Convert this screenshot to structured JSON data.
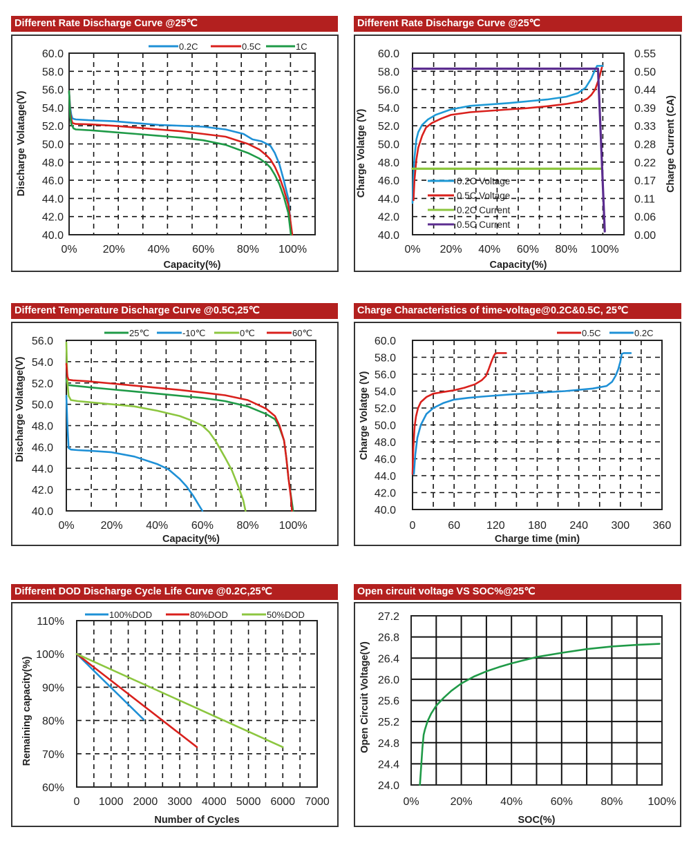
{
  "chart_data": [
    {
      "id": "rate-discharge",
      "type": "line",
      "title": "Different Rate Discharge Curve @25℃",
      "xlabel": "Capacity(%)",
      "ylabel": "Discharge Volatage(V)",
      "xlim": [
        0,
        110
      ],
      "ylim": [
        40,
        60
      ],
      "xticks": [
        0,
        20,
        40,
        60,
        80,
        100
      ],
      "xtick_labels": [
        "0%",
        "20%",
        "40%",
        "60%",
        "80%",
        "100%"
      ],
      "yticks": [
        40,
        42,
        44,
        46,
        48,
        50,
        52,
        54,
        56,
        58,
        60
      ],
      "ytick_labels": [
        "40.0",
        "42.0",
        "44.0",
        "46.0",
        "48.0",
        "50.0",
        "52.0",
        "54.0",
        "56.0",
        "58.0",
        "60.0"
      ],
      "grid": "dashed",
      "legend": "top-right",
      "series": [
        {
          "name": "0.2C",
          "color": "#1e90d6",
          "x": [
            0,
            0.5,
            1,
            1.5,
            3,
            10,
            20,
            30,
            40,
            50,
            60,
            70,
            78,
            82,
            86,
            90,
            92,
            94,
            96,
            98,
            99.5
          ],
          "y": [
            55.8,
            54,
            53.2,
            52.8,
            52.7,
            52.6,
            52.5,
            52.3,
            52.1,
            52.0,
            51.9,
            51.6,
            51.1,
            50.5,
            50.3,
            49.8,
            49.0,
            47.8,
            46.0,
            44.0,
            40.0
          ]
        },
        {
          "name": "0.5C",
          "color": "#d9201c",
          "x": [
            0,
            0.5,
            1,
            1.5,
            3,
            10,
            20,
            30,
            40,
            50,
            60,
            70,
            80,
            85,
            88,
            90,
            92,
            94,
            96,
            98,
            99.8
          ],
          "y": [
            55.8,
            53.5,
            52.7,
            52.3,
            52.2,
            52.15,
            52.0,
            51.8,
            51.6,
            51.4,
            51.1,
            50.8,
            50.0,
            49.4,
            48.8,
            48.3,
            47.5,
            46.4,
            45.0,
            43.3,
            40.0
          ]
        },
        {
          "name": "1C",
          "color": "#1f9a47",
          "x": [
            0,
            0.5,
            1,
            2,
            3,
            10,
            20,
            30,
            40,
            50,
            60,
            70,
            80,
            85,
            88,
            90,
            92,
            94,
            96,
            98,
            99.2
          ],
          "y": [
            55.8,
            53.0,
            52.2,
            51.7,
            51.6,
            51.5,
            51.3,
            51.1,
            50.9,
            50.7,
            50.4,
            49.9,
            49.0,
            48.4,
            47.9,
            47.4,
            46.6,
            45.6,
            44.2,
            42.4,
            40.0
          ]
        }
      ]
    },
    {
      "id": "rate-charge",
      "type": "line",
      "title": "Different Rate Discharge Curve @25℃",
      "xlabel": "Capacity(%)",
      "ylabel": "Charge Volatge (V)",
      "y2label": "Charge Current (CA)",
      "xlim": [
        0,
        110
      ],
      "ylim": [
        40,
        60
      ],
      "y2lim": [
        0,
        0.55
      ],
      "xticks": [
        0,
        20,
        40,
        60,
        80,
        100
      ],
      "xtick_labels": [
        "0%",
        "20%",
        "40%",
        "60%",
        "80%",
        "100%"
      ],
      "yticks": [
        40,
        42,
        44,
        46,
        48,
        50,
        52,
        54,
        56,
        58,
        60
      ],
      "ytick_labels": [
        "40.0",
        "42.0",
        "44.0",
        "46.0",
        "48.0",
        "50.0",
        "52.0",
        "54.0",
        "56.0",
        "58.0",
        "60.0"
      ],
      "y2tick_labels": [
        "0.00",
        "0.06",
        "0.11",
        "0.17",
        "0.22",
        "0.28",
        "0.33",
        "0.39",
        "0.44",
        "0.50",
        "0.55"
      ],
      "grid": "dashed",
      "legend": "bottom-left",
      "series": [
        {
          "name": "0.2C Voltage",
          "color": "#1e9ad6",
          "axis": "left",
          "x": [
            0,
            0.4,
            1,
            2,
            3,
            5,
            8,
            12,
            20,
            30,
            40,
            50,
            60,
            70,
            80,
            86,
            90,
            93,
            95,
            96,
            99
          ],
          "y": [
            43.5,
            46,
            48.5,
            50.5,
            51.3,
            52.1,
            52.7,
            53.2,
            53.8,
            54.2,
            54.35,
            54.5,
            54.7,
            54.9,
            55.2,
            55.6,
            56.2,
            57.2,
            58.2,
            58.6,
            58.6
          ]
        },
        {
          "name": "0.5C Voltage",
          "color": "#d9201c",
          "axis": "left",
          "x": [
            0.5,
            1,
            2,
            3,
            5,
            7,
            10,
            15,
            20,
            30,
            40,
            50,
            60,
            70,
            80,
            88,
            91,
            93,
            95,
            97,
            98.5
          ],
          "y": [
            43.8,
            46,
            48.3,
            49.6,
            50.9,
            51.8,
            52.3,
            52.8,
            53.2,
            53.5,
            53.65,
            53.8,
            53.95,
            54.15,
            54.4,
            54.7,
            55.0,
            55.4,
            56.0,
            57.2,
            58.4
          ]
        },
        {
          "name": "0.2C Current",
          "color": "#8cc63f",
          "axis": "right",
          "x": [
            0,
            98
          ],
          "y": [
            0.2,
            0.2
          ]
        },
        {
          "name": "0.5C Current",
          "color": "#5b2c8f",
          "axis": "right",
          "x": [
            0,
            96.5,
            100
          ],
          "y": [
            0.503,
            0.503,
            0.01
          ]
        }
      ]
    },
    {
      "id": "temperature-discharge",
      "type": "line",
      "title": "Different Temperature Discharge Curve @0.5C,25℃",
      "xlabel": "Capacity(%)",
      "ylabel": "Discharge Volatage(V)",
      "xlim": [
        0,
        110
      ],
      "ylim": [
        40,
        56
      ],
      "xticks": [
        0,
        20,
        40,
        60,
        80,
        100
      ],
      "xtick_labels": [
        "0%",
        "20%",
        "40%",
        "60%",
        "80%",
        "100%"
      ],
      "yticks": [
        40,
        42,
        44,
        46,
        48,
        50,
        52,
        54,
        56
      ],
      "ytick_labels": [
        "40.0",
        "42.0",
        "44.0",
        "46.0",
        "48.0",
        "50.0",
        "52.0",
        "54.0",
        "56.0"
      ],
      "grid": "dashed",
      "legend": "top",
      "series": [
        {
          "name": "25℃",
          "color": "#1f9a47",
          "x": [
            0,
            0.5,
            1,
            3,
            10,
            20,
            30,
            40,
            50,
            60,
            70,
            80,
            88,
            92,
            94,
            96,
            97,
            98,
            99,
            100
          ],
          "y": [
            52.3,
            51.9,
            51.8,
            51.75,
            51.6,
            51.4,
            51.2,
            51.0,
            50.8,
            50.6,
            50.3,
            49.8,
            49.1,
            48.6,
            47.8,
            46.6,
            45.0,
            43.0,
            41.5,
            40.0
          ]
        },
        {
          "name": "-10℃",
          "color": "#1e90d6",
          "x": [
            0,
            0.5,
            1,
            2,
            5,
            10,
            20,
            30,
            40,
            45,
            50,
            53,
            56,
            58,
            60
          ],
          "y": [
            50.8,
            48,
            45.9,
            45.75,
            45.7,
            45.65,
            45.5,
            45.1,
            44.4,
            43.9,
            43.0,
            42.3,
            41.4,
            40.7,
            40.0
          ]
        },
        {
          "name": "0℃",
          "color": "#8cc63f",
          "x": [
            0,
            0.5,
            1,
            2,
            5,
            10,
            20,
            30,
            40,
            50,
            55,
            60,
            63,
            66,
            70,
            73,
            76,
            78,
            79
          ],
          "y": [
            55.8,
            52,
            50.8,
            50.4,
            50.3,
            50.2,
            50.0,
            49.8,
            49.4,
            48.9,
            48.5,
            48.0,
            47.4,
            46.5,
            45.0,
            43.8,
            42.2,
            41.0,
            40.0
          ]
        },
        {
          "name": "60℃",
          "color": "#d9201c",
          "x": [
            0,
            0.5,
            1,
            3,
            10,
            20,
            30,
            40,
            50,
            60,
            70,
            80,
            88,
            92,
            94,
            96,
            97,
            98,
            99,
            99.5
          ],
          "y": [
            53.8,
            52.6,
            52.3,
            52.25,
            52.15,
            51.95,
            51.75,
            51.55,
            51.35,
            51.1,
            50.85,
            50.4,
            49.6,
            48.9,
            48.0,
            46.6,
            45.0,
            43.0,
            41.3,
            40.0
          ]
        }
      ]
    },
    {
      "id": "charge-time",
      "type": "line",
      "title": "Charge Characteristics of time-voltage@0.2C&0.5C, 25℃",
      "xlabel": "Charge time (min)",
      "ylabel": "Charge Volatge (V)",
      "xlim": [
        0,
        360
      ],
      "ylim": [
        40,
        60
      ],
      "xticks": [
        0,
        60,
        120,
        180,
        240,
        300,
        360
      ],
      "xtick_labels": [
        "0",
        "60",
        "120",
        "180",
        "240",
        "300",
        "360"
      ],
      "yticks": [
        40,
        42,
        44,
        46,
        48,
        50,
        52,
        54,
        56,
        58,
        60
      ],
      "ytick_labels": [
        "40.0",
        "42.0",
        "44.0",
        "46.0",
        "48.0",
        "50.0",
        "52.0",
        "54.0",
        "56.0",
        "58.0",
        "60.0"
      ],
      "grid": "dashed",
      "legend": "top-right",
      "series": [
        {
          "name": "0.5C",
          "color": "#d9201c",
          "x": [
            0,
            1,
            3,
            5,
            8,
            12,
            20,
            30,
            45,
            60,
            75,
            90,
            100,
            106,
            110,
            114,
            117,
            119,
            122,
            135
          ],
          "y": [
            44.2,
            47,
            49.8,
            51.0,
            52.0,
            52.7,
            53.3,
            53.7,
            53.9,
            54.1,
            54.4,
            54.8,
            55.3,
            55.8,
            56.6,
            57.5,
            58.1,
            58.4,
            58.5,
            58.5
          ]
        },
        {
          "name": "0.2C",
          "color": "#1e90d6",
          "x": [
            2,
            4,
            7,
            12,
            20,
            30,
            45,
            60,
            80,
            100,
            140,
            180,
            220,
            260,
            280,
            288,
            293,
            297,
            300,
            302,
            305,
            315
          ],
          "y": [
            44.2,
            46.5,
            48.5,
            50.0,
            51.3,
            52.0,
            52.6,
            53.0,
            53.2,
            53.35,
            53.6,
            53.8,
            54.0,
            54.3,
            54.6,
            55.1,
            55.8,
            56.6,
            57.5,
            58.4,
            58.5,
            58.5
          ]
        }
      ]
    },
    {
      "id": "dod-cycle-life",
      "type": "line",
      "title": "Different DOD Discharge Cycle Life Curve @0.2C,25℃",
      "xlabel": "Number of Cycles",
      "ylabel": "Remaining capacity(%)",
      "xlim": [
        0,
        7000
      ],
      "ylim": [
        60,
        110
      ],
      "xticks": [
        0,
        1000,
        2000,
        3000,
        4000,
        5000,
        6000,
        7000
      ],
      "xtick_labels": [
        "0",
        "1000",
        "2000",
        "3000",
        "4000",
        "5000",
        "6000",
        "7000"
      ],
      "yticks": [
        60,
        70,
        80,
        90,
        100,
        110
      ],
      "ytick_labels": [
        "60%",
        "70%",
        "80%",
        "90%",
        "100%",
        "110%"
      ],
      "grid": "dashed",
      "legend": "top",
      "series": [
        {
          "name": "100%DOD",
          "color": "#1e90d6",
          "x": [
            0,
            1950
          ],
          "y": [
            100,
            80.3
          ]
        },
        {
          "name": "80%DOD",
          "color": "#d9201c",
          "x": [
            0,
            3500
          ],
          "y": [
            100,
            72
          ]
        },
        {
          "name": "50%DOD",
          "color": "#8cc63f",
          "x": [
            0,
            6000
          ],
          "y": [
            100,
            72
          ]
        }
      ]
    },
    {
      "id": "ocv-soc",
      "type": "line",
      "title": "Open circuit voltage VS SOC%@25℃",
      "xlabel": "SOC(%)",
      "ylabel": "Open Circuit Voltage(V)",
      "xlim": [
        0,
        100
      ],
      "ylim": [
        24.0,
        27.2
      ],
      "xticks": [
        0,
        20,
        40,
        60,
        80,
        100
      ],
      "xtick_labels": [
        "0%",
        "20%",
        "40%",
        "60%",
        "80%",
        "100%"
      ],
      "yticks": [
        24.0,
        24.4,
        24.8,
        25.2,
        25.6,
        26.0,
        26.4,
        26.8,
        27.2
      ],
      "ytick_labels": [
        "24.0",
        "24.4",
        "24.8",
        "25.2",
        "25.6",
        "26.0",
        "26.4",
        "26.8",
        "27.2"
      ],
      "grid": "solid",
      "legend": "none",
      "series": [
        {
          "name": "OCV",
          "color": "#1f9a47",
          "x": [
            3.5,
            4,
            4.5,
            5,
            5.5,
            6.5,
            8,
            10,
            13,
            16,
            20,
            25,
            30,
            35,
            40,
            45,
            50,
            60,
            70,
            80,
            90,
            99
          ],
          "y": [
            24.0,
            24.35,
            24.7,
            24.95,
            25.05,
            25.2,
            25.35,
            25.5,
            25.65,
            25.78,
            25.92,
            26.05,
            26.15,
            26.23,
            26.3,
            26.36,
            26.42,
            26.5,
            26.57,
            26.62,
            26.65,
            26.67
          ]
        }
      ]
    }
  ]
}
